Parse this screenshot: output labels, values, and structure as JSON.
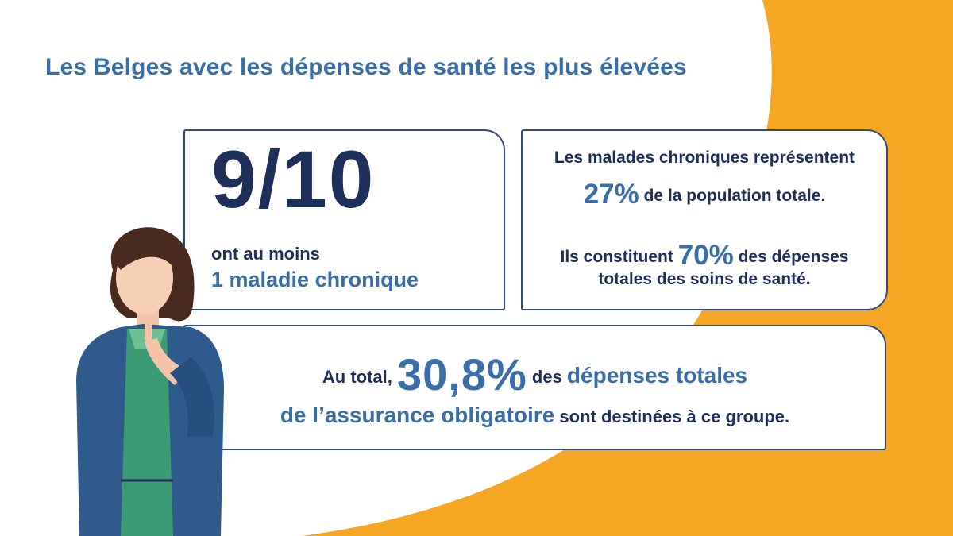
{
  "title": "Les Belges avec les dépenses de santé les plus élevées",
  "colors": {
    "accent_orange": "#f5a623",
    "accent_blue": "#3a6ea8",
    "navy": "#1f2f5c"
  },
  "card_fraction": {
    "value": "9/10",
    "line1": "ont au moins",
    "line2": "1 maladie chronique"
  },
  "card_chronic": {
    "line1": "Les malades chroniques représentent",
    "line2_pct": "27%",
    "line2_rest": " de la population totale.",
    "line3_pre": "Ils constituent ",
    "line3_pct": "70%",
    "line3_post": " des dépenses",
    "line4": "totales des soins de santé."
  },
  "card_total": {
    "pre": "Au total, ",
    "pct": "30,8%",
    "mid": " des ",
    "accent1": "dépenses totales",
    "accent2": "de l’assurance obligatoire",
    "post": " sont destinées à ce groupe."
  },
  "illustration": {
    "icon": "thinking-woman-illustration"
  }
}
